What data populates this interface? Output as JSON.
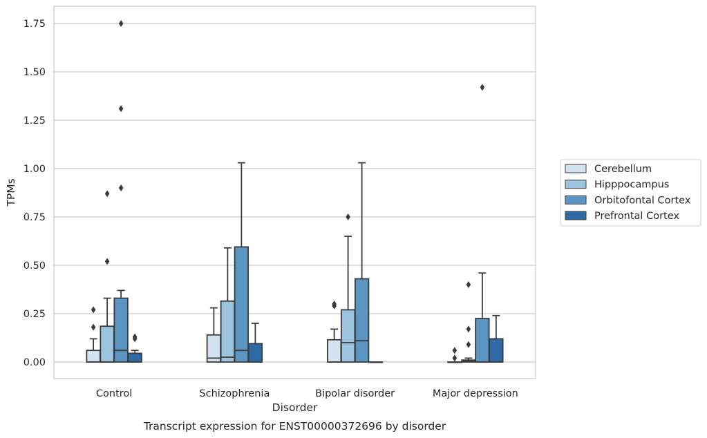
{
  "chart_data": {
    "type": "box",
    "caption": "Transcript expression for ENST00000372696 by disorder",
    "xlabel": "Disorder",
    "ylabel": "TPMs",
    "ylim": [
      -0.085,
      1.84
    ],
    "yticks": [
      0.0,
      0.25,
      0.5,
      0.75,
      1.0,
      1.25,
      1.5,
      1.75
    ],
    "ytick_labels": [
      "0.00",
      "0.25",
      "0.50",
      "0.75",
      "1.00",
      "1.25",
      "1.50",
      "1.75"
    ],
    "grid": "horizontal",
    "legend_position": "right",
    "categories": [
      "Control",
      "Schizophrenia",
      "Bipolar disorder",
      "Major depression"
    ],
    "series": [
      {
        "name": "Cerebellum",
        "color": "#d3e3f2",
        "boxes": [
          {
            "min": 0.0,
            "q1": 0.0,
            "median": 0.0,
            "q3": 0.06,
            "max": 0.12,
            "outliers": [
              0.18,
              0.27
            ]
          },
          {
            "min": 0.0,
            "q1": 0.0,
            "median": 0.02,
            "q3": 0.14,
            "max": 0.28,
            "outliers": []
          },
          {
            "min": 0.0,
            "q1": 0.0,
            "median": 0.0,
            "q3": 0.115,
            "max": 0.17,
            "outliers": [
              0.29,
              0.3
            ]
          },
          {
            "min": 0.0,
            "q1": 0.0,
            "median": 0.0,
            "q3": 0.0,
            "max": 0.0,
            "outliers": [
              0.02,
              0.06
            ]
          }
        ]
      },
      {
        "name": "Hipppocampus",
        "color": "#9dc4de",
        "boxes": [
          {
            "min": 0.0,
            "q1": 0.0,
            "median": 0.0,
            "q3": 0.185,
            "max": 0.33,
            "outliers": [
              0.52,
              0.87
            ]
          },
          {
            "min": 0.0,
            "q1": 0.0,
            "median": 0.025,
            "q3": 0.315,
            "max": 0.59,
            "outliers": []
          },
          {
            "min": 0.0,
            "q1": 0.0,
            "median": 0.1,
            "q3": 0.27,
            "max": 0.65,
            "outliers": [
              0.75
            ]
          },
          {
            "min": 0.0,
            "q1": 0.0,
            "median": 0.005,
            "q3": 0.01,
            "max": 0.02,
            "outliers": [
              0.09,
              0.17,
              0.4
            ]
          }
        ]
      },
      {
        "name": "Orbitofontal Cortex",
        "color": "#5b96c3",
        "boxes": [
          {
            "min": 0.0,
            "q1": 0.0,
            "median": 0.06,
            "q3": 0.33,
            "max": 0.37,
            "outliers": [
              0.9,
              1.31,
              1.75
            ]
          },
          {
            "min": 0.0,
            "q1": 0.0,
            "median": 0.06,
            "q3": 0.595,
            "max": 1.03,
            "outliers": []
          },
          {
            "min": 0.0,
            "q1": 0.0,
            "median": 0.11,
            "q3": 0.43,
            "max": 1.03,
            "outliers": []
          },
          {
            "min": 0.0,
            "q1": 0.0,
            "median": 0.0,
            "q3": 0.225,
            "max": 0.46,
            "outliers": [
              1.42
            ]
          }
        ]
      },
      {
        "name": "Prefrontal Cortex",
        "color": "#2e6aa6",
        "boxes": [
          {
            "min": 0.0,
            "q1": 0.0,
            "median": 0.0,
            "q3": 0.045,
            "max": 0.06,
            "outliers": [
              0.12,
              0.13
            ]
          },
          {
            "min": 0.0,
            "q1": 0.0,
            "median": 0.0,
            "q3": 0.095,
            "max": 0.2,
            "outliers": []
          },
          {
            "min": 0.0,
            "q1": 0.0,
            "median": 0.0,
            "q3": 0.0,
            "max": 0.0,
            "outliers": []
          },
          {
            "min": 0.0,
            "q1": 0.0,
            "median": 0.0,
            "q3": 0.12,
            "max": 0.24,
            "outliers": []
          }
        ]
      }
    ]
  }
}
